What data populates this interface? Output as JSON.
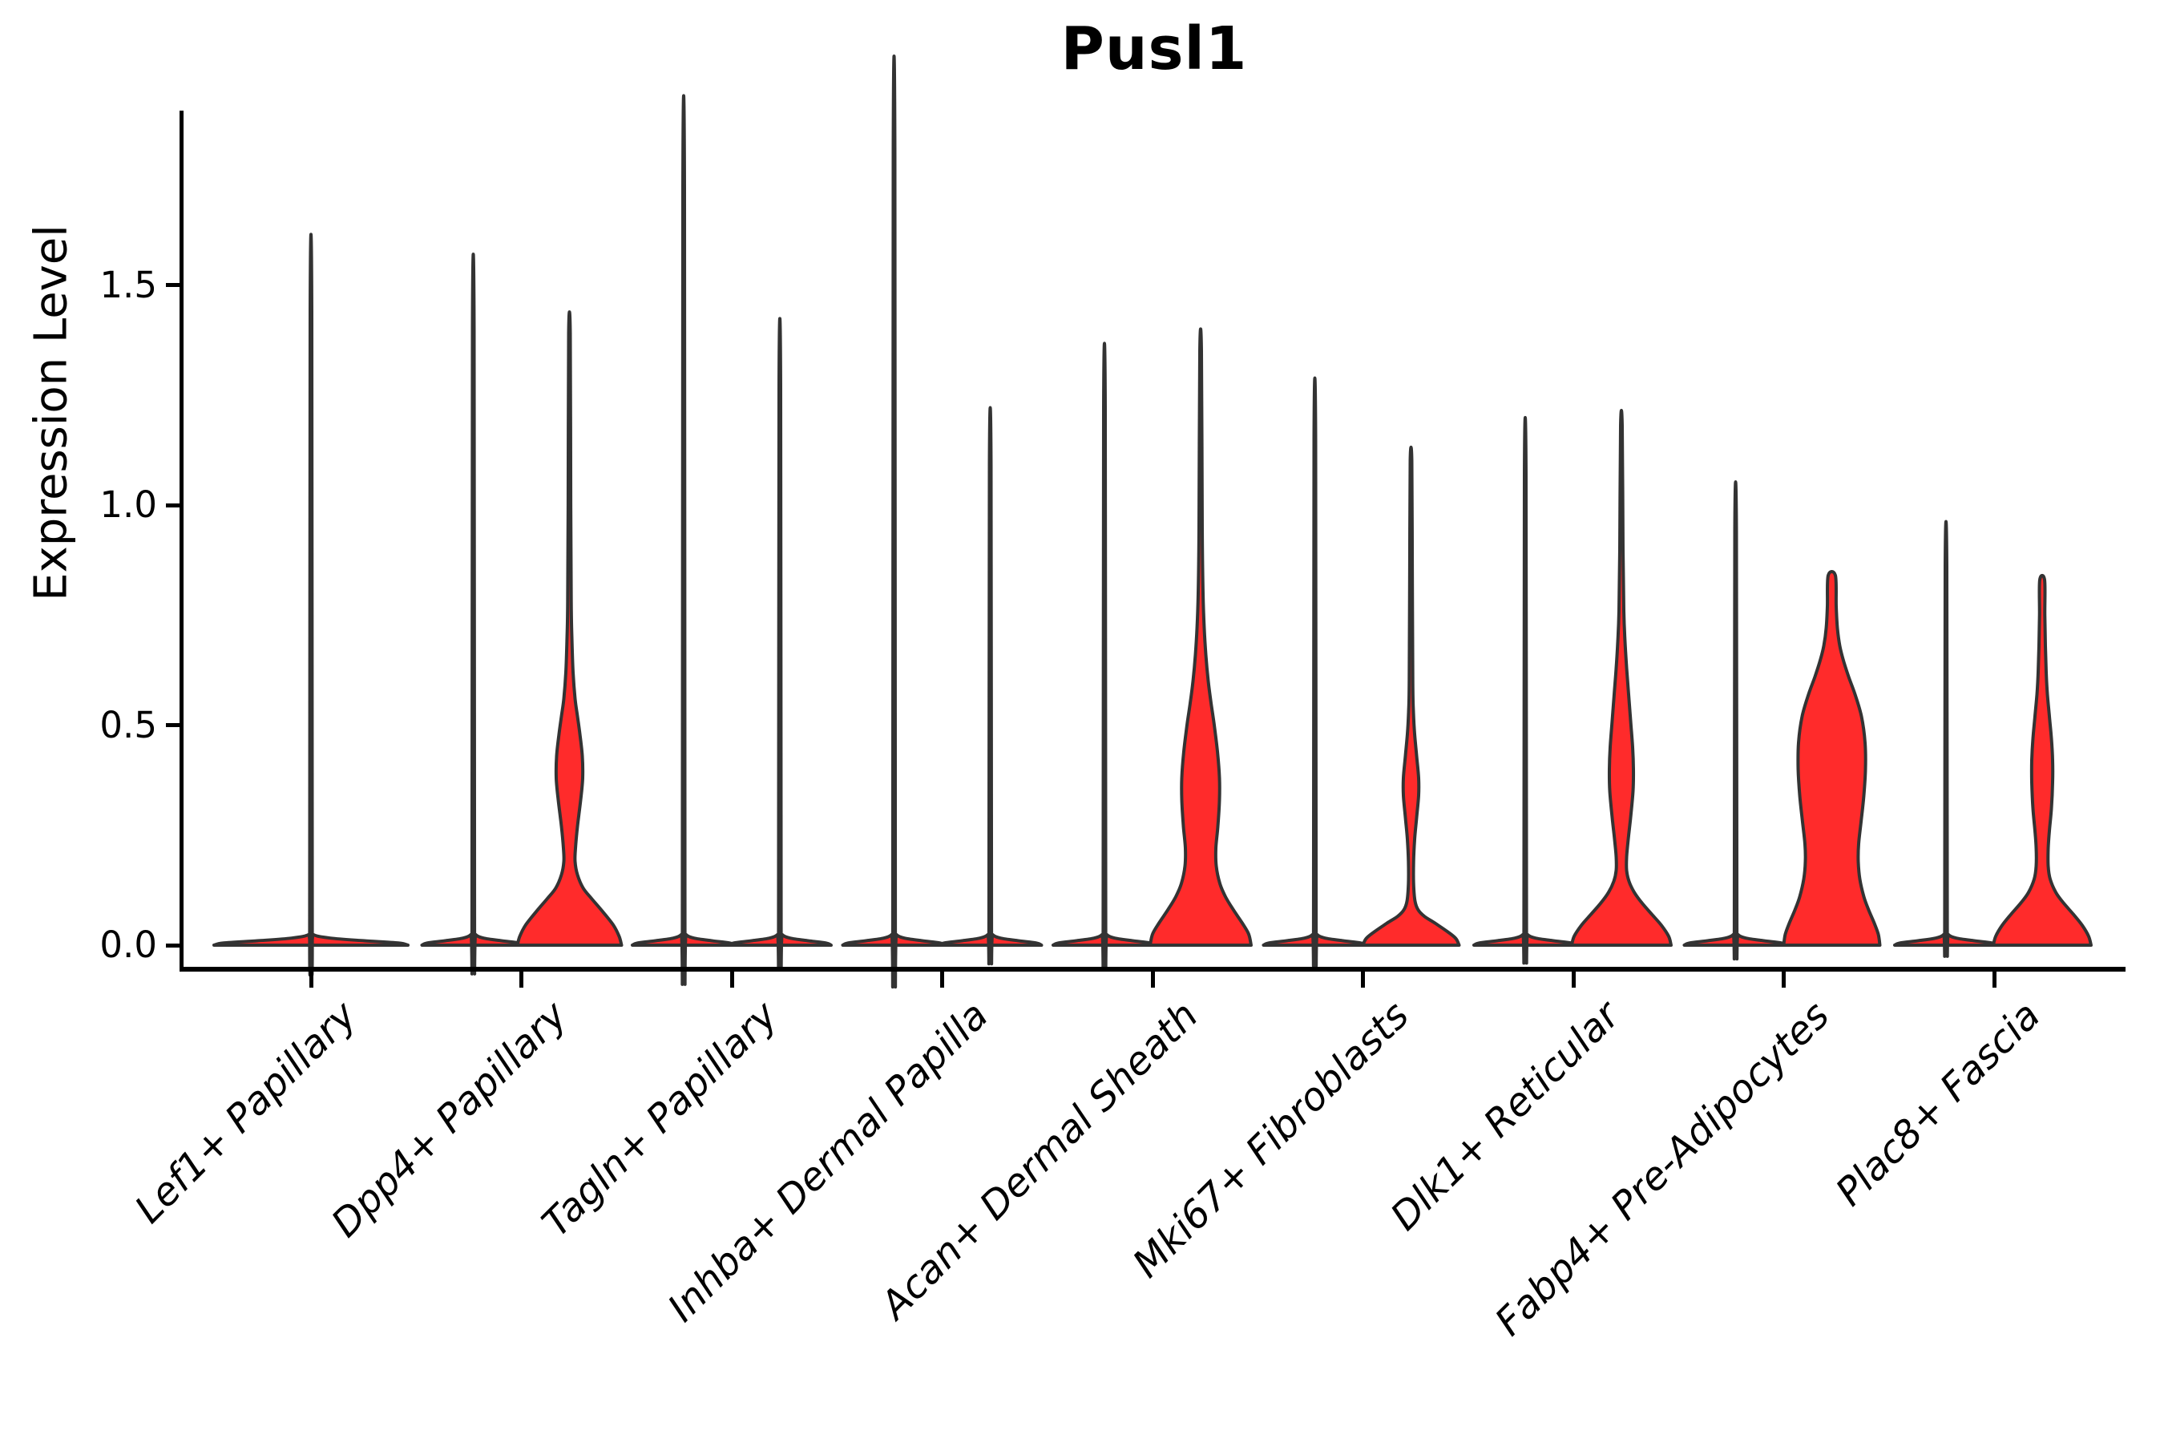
{
  "title": "Pusl1",
  "y_axis": {
    "label": "Expression Level",
    "ticks": [
      {
        "value": 0.0,
        "label": "0.0"
      },
      {
        "value": 0.5,
        "label": "0.5"
      },
      {
        "value": 1.0,
        "label": "1.0"
      },
      {
        "value": 1.5,
        "label": "1.5"
      }
    ]
  },
  "x_axis": {
    "categories": [
      "Lef1+ Papillary",
      "Dpp4+ Papillary",
      "Tagln+ Papillary",
      "Inhba+ Dermal Papilla",
      "Acan+ Dermal Sheath",
      "Mki67+ Fibroblasts",
      "Dlk1+ Reticular",
      "Fabp4+ Pre-Adipocytes",
      "Plac8+ Fascia"
    ]
  },
  "colors": {
    "violin_fill": "#ff2b2b",
    "violin_stroke": "#333333",
    "axis": "#000000"
  },
  "chart_data": {
    "type": "violin",
    "title": "Pusl1",
    "ylabel": "Expression Level",
    "ylim": [
      -0.06,
      1.89
    ],
    "ytick_values": [
      0.0,
      0.5,
      1.0,
      1.5
    ],
    "grid": false,
    "legend": "none",
    "categories": [
      "Lef1+ Papillary",
      "Dpp4+ Papillary",
      "Tagln+ Papillary",
      "Inhba+ Dermal Papilla",
      "Acan+ Dermal Sheath",
      "Mki67+ Fibroblasts",
      "Dlk1+ Reticular",
      "Fabp4+ Pre-Adipocytes",
      "Plac8+ Fascia"
    ],
    "description": "Each category shows violins of Pusl1 expression; density mass concentrated at 0 with thin spikes to the maximum expression; some violins have visible red KDE bodies.",
    "violins": [
      {
        "category_index": 0,
        "side": "center",
        "shape": "flat",
        "base_halfwidth": 121,
        "max": 1.44
      },
      {
        "category_index": 1,
        "side": "left",
        "shape": "flat",
        "base_halfwidth": 64,
        "max": 1.4
      },
      {
        "category_index": 1,
        "side": "right",
        "shape": "body",
        "max": 1.39,
        "profile": [
          [
            0,
            65
          ],
          [
            0.02,
            62
          ],
          [
            0.045,
            55
          ],
          [
            0.075,
            42
          ],
          [
            0.105,
            28
          ],
          [
            0.13,
            17
          ],
          [
            0.16,
            10
          ],
          [
            0.19,
            7
          ],
          [
            0.22,
            7.5
          ],
          [
            0.27,
            10
          ],
          [
            0.33,
            14
          ],
          [
            0.38,
            16.5
          ],
          [
            0.43,
            16
          ],
          [
            0.48,
            13
          ],
          [
            0.52,
            10
          ],
          [
            0.56,
            7
          ],
          [
            0.62,
            4.5
          ],
          [
            0.7,
            3
          ],
          [
            0.78,
            2.2
          ],
          [
            1.0,
            1.6
          ],
          [
            1.39,
            1
          ]
        ]
      },
      {
        "category_index": 2,
        "side": "left",
        "shape": "flat",
        "base_halfwidth": 64,
        "max": 1.72
      },
      {
        "category_index": 2,
        "side": "right",
        "shape": "flat",
        "base_halfwidth": 64,
        "max": 1.27
      },
      {
        "category_index": 3,
        "side": "left",
        "shape": "flat",
        "base_halfwidth": 64,
        "max": 1.8
      },
      {
        "category_index": 3,
        "side": "right",
        "shape": "flat",
        "base_halfwidth": 64,
        "max": 1.09
      },
      {
        "category_index": 4,
        "side": "left",
        "shape": "flat",
        "base_halfwidth": 64,
        "max": 1.22
      },
      {
        "category_index": 4,
        "side": "right",
        "shape": "body",
        "max": 1.35,
        "profile": [
          [
            0,
            63
          ],
          [
            0.025,
            60
          ],
          [
            0.05,
            52
          ],
          [
            0.08,
            41
          ],
          [
            0.11,
            31
          ],
          [
            0.14,
            24
          ],
          [
            0.18,
            19.5
          ],
          [
            0.22,
            19
          ],
          [
            0.27,
            21.5
          ],
          [
            0.33,
            23.5
          ],
          [
            0.38,
            23.5
          ],
          [
            0.44,
            21
          ],
          [
            0.5,
            17
          ],
          [
            0.55,
            13
          ],
          [
            0.6,
            9.5
          ],
          [
            0.66,
            6.5
          ],
          [
            0.72,
            4.5
          ],
          [
            0.8,
            3
          ],
          [
            0.95,
            2
          ],
          [
            1.35,
            1
          ]
        ]
      },
      {
        "category_index": 5,
        "side": "left",
        "shape": "flat",
        "base_halfwidth": 64,
        "max": 1.15
      },
      {
        "category_index": 5,
        "side": "right",
        "shape": "body",
        "max": 1.1,
        "profile": [
          [
            0,
            60
          ],
          [
            0.015,
            56
          ],
          [
            0.03,
            46
          ],
          [
            0.05,
            30
          ],
          [
            0.065,
            17
          ],
          [
            0.08,
            9
          ],
          [
            0.1,
            5
          ],
          [
            0.14,
            3.2
          ],
          [
            0.19,
            3.2
          ],
          [
            0.24,
            4.5
          ],
          [
            0.29,
            7
          ],
          [
            0.34,
            9.5
          ],
          [
            0.38,
            9.5
          ],
          [
            0.43,
            7
          ],
          [
            0.48,
            4.5
          ],
          [
            0.53,
            3
          ],
          [
            0.6,
            2.2
          ],
          [
            0.85,
            1.6
          ],
          [
            1.1,
            1
          ]
        ]
      },
      {
        "category_index": 6,
        "side": "left",
        "shape": "flat",
        "base_halfwidth": 64,
        "max": 1.07
      },
      {
        "category_index": 6,
        "side": "right",
        "shape": "body",
        "max": 1.18,
        "profile": [
          [
            0,
            62
          ],
          [
            0.02,
            59
          ],
          [
            0.045,
            50
          ],
          [
            0.07,
            38
          ],
          [
            0.095,
            26
          ],
          [
            0.12,
            16
          ],
          [
            0.145,
            9.5
          ],
          [
            0.17,
            6.5
          ],
          [
            0.2,
            6.5
          ],
          [
            0.24,
            8.5
          ],
          [
            0.29,
            11.5
          ],
          [
            0.35,
            14.5
          ],
          [
            0.4,
            15
          ],
          [
            0.45,
            14
          ],
          [
            0.51,
            11.5
          ],
          [
            0.57,
            9
          ],
          [
            0.63,
            6.5
          ],
          [
            0.69,
            4.5
          ],
          [
            0.76,
            3
          ],
          [
            0.9,
            2
          ],
          [
            1.18,
            1
          ]
        ]
      },
      {
        "category_index": 7,
        "side": "left",
        "shape": "flat",
        "base_halfwidth": 64,
        "max": 0.94
      },
      {
        "category_index": 7,
        "side": "right",
        "shape": "body",
        "max": 0.84,
        "profile": [
          [
            0,
            60
          ],
          [
            0.025,
            58
          ],
          [
            0.05,
            53
          ],
          [
            0.08,
            46
          ],
          [
            0.11,
            40
          ],
          [
            0.15,
            35
          ],
          [
            0.19,
            33
          ],
          [
            0.23,
            33.5
          ],
          [
            0.28,
            36.5
          ],
          [
            0.34,
            40
          ],
          [
            0.4,
            42
          ],
          [
            0.46,
            41.5
          ],
          [
            0.52,
            37
          ],
          [
            0.57,
            29
          ],
          [
            0.61,
            21
          ],
          [
            0.65,
            14
          ],
          [
            0.68,
            10
          ],
          [
            0.72,
            7
          ],
          [
            0.77,
            5.5
          ],
          [
            0.84,
            4.5
          ]
        ]
      },
      {
        "category_index": 8,
        "side": "left",
        "shape": "flat",
        "base_halfwidth": 64,
        "max": 0.86
      },
      {
        "category_index": 8,
        "side": "right",
        "shape": "body",
        "max": 0.83,
        "profile": [
          [
            0,
            61
          ],
          [
            0.02,
            58
          ],
          [
            0.045,
            50
          ],
          [
            0.07,
            39
          ],
          [
            0.095,
            27
          ],
          [
            0.12,
            17
          ],
          [
            0.15,
            10
          ],
          [
            0.18,
            7.5
          ],
          [
            0.22,
            7.5
          ],
          [
            0.26,
            9
          ],
          [
            0.31,
            11.5
          ],
          [
            0.37,
            13
          ],
          [
            0.42,
            13
          ],
          [
            0.47,
            11.5
          ],
          [
            0.52,
            9
          ],
          [
            0.57,
            6.5
          ],
          [
            0.62,
            5
          ],
          [
            0.68,
            4
          ],
          [
            0.75,
            3.3
          ],
          [
            0.83,
            3
          ]
        ]
      }
    ]
  }
}
